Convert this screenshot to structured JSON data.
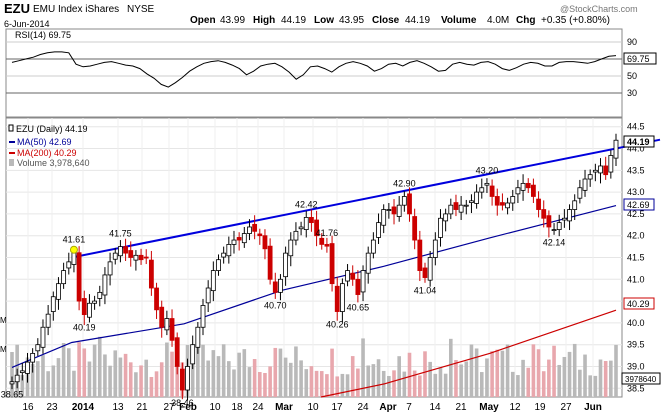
{
  "header": {
    "symbol": "EZU",
    "name": "EMU Index iShares",
    "exchange": "NYSE",
    "date": "6-Jun-2014",
    "watermark": "@StockCharts.com",
    "quote": {
      "open_label": "Open",
      "open": "43.99",
      "high_label": "High",
      "high": "44.19",
      "low_label": "Low",
      "low": "43.95",
      "close_label": "Close",
      "close": "44.19",
      "volume_label": "Volume",
      "volume": "4.0M",
      "chg_label": "Chg",
      "chg": "+0.35 (+0.80%)"
    }
  },
  "rsi_panel": {
    "legend": "RSI(14) 69.75",
    "last_value_tag": "69.75",
    "ticks": [
      "90",
      "70",
      "50",
      "30"
    ]
  },
  "price_panel": {
    "legend": {
      "price": "EZU (Daily) 44.19",
      "ma50": "MA(50) 42.69",
      "ma200": "MA(200) 40.29",
      "volume": "Volume 3,978,640"
    },
    "price_tags": {
      "close": "44.19",
      "ma50": "42.69",
      "ma200": "40.29",
      "volume": "3978640"
    },
    "y_ticks": [
      "44.5",
      "44.0",
      "43.5",
      "43.0",
      "42.5",
      "42.0",
      "41.5",
      "41.0",
      "40.5",
      "40.0",
      "39.5",
      "39.0",
      "38.5"
    ],
    "annotations": [
      "38.65",
      "41.61",
      "40.19",
      "41.75",
      "38.46",
      "42.42",
      "40.70",
      "41.76",
      "40.26",
      "40.65",
      "42.90",
      "41.04",
      "43.20",
      "42.14"
    ],
    "left_marks": [
      "M",
      "M"
    ]
  },
  "x_axis": {
    "labels": [
      "16",
      "23",
      "2014",
      "13",
      "21",
      "27",
      "Feb",
      "10",
      "18",
      "24",
      "Mar",
      "10",
      "17",
      "24",
      "Apr",
      "7",
      "14",
      "21",
      "May",
      "12",
      "19",
      "27",
      "Jun"
    ]
  },
  "colors": {
    "up": "#ffffff",
    "down": "#cc0000",
    "wick": "#000000",
    "trendline": "#0000dd",
    "ma50": "#000099",
    "ma200": "#cc0000",
    "vol_down": "#e8a7ad",
    "vol_up": "#b9b9b9",
    "highlight_dot": "#ffff00"
  },
  "chart_data": [
    {
      "type": "candlestick",
      "title": "EZU EMU Index iShares NYSE",
      "x_start": "2013-12-16",
      "x_end": "2014-06-06",
      "ylim": [
        38.3,
        44.7
      ],
      "close_series": [
        38.65,
        38.8,
        38.9,
        39.1,
        39.3,
        39.5,
        39.9,
        40.2,
        40.6,
        40.9,
        41.2,
        41.4,
        41.61,
        40.5,
        40.19,
        40.45,
        40.5,
        40.7,
        41.1,
        41.4,
        41.6,
        41.75,
        41.6,
        41.5,
        41.55,
        41.45,
        41.5,
        40.8,
        40.3,
        39.9,
        40.1,
        39.6,
        39.0,
        38.46,
        39.0,
        39.5,
        39.9,
        40.4,
        40.8,
        41.2,
        41.45,
        41.6,
        41.8,
        41.9,
        41.9,
        42.05,
        42.2,
        42.1,
        42.0,
        41.7,
        41.0,
        40.7,
        41.0,
        41.6,
        41.9,
        42.1,
        42.2,
        42.42,
        42.3,
        42.0,
        41.8,
        41.76,
        40.9,
        40.26,
        40.9,
        41.2,
        41.0,
        40.65,
        41.2,
        41.6,
        41.9,
        42.3,
        42.6,
        42.6,
        42.5,
        42.7,
        42.9,
        42.5,
        41.9,
        41.2,
        41.04,
        41.5,
        41.9,
        42.4,
        42.5,
        42.7,
        42.6,
        42.7,
        42.7,
        42.8,
        43.0,
        43.1,
        43.2,
        42.9,
        42.7,
        42.7,
        42.75,
        42.9,
        43.1,
        43.2,
        43.1,
        42.9,
        42.6,
        42.4,
        42.2,
        42.14,
        42.3,
        42.4,
        42.6,
        42.8,
        43.1,
        43.3,
        43.4,
        43.5,
        43.6,
        43.4,
        43.84,
        44.19
      ]
    },
    {
      "type": "line",
      "name": "MA(50)",
      "x": [
        "2013-12-16",
        "2014-01-02",
        "2014-02-03",
        "2014-03-03",
        "2014-04-01",
        "2014-05-01",
        "2014-06-06"
      ],
      "y": [
        38.98,
        39.55,
        39.98,
        40.75,
        41.3,
        41.95,
        42.69
      ]
    },
    {
      "type": "line",
      "name": "MA(200)",
      "x": [
        "2014-03-14",
        "2014-04-01",
        "2014-05-01",
        "2014-06-06"
      ],
      "y": [
        38.3,
        38.6,
        39.3,
        40.29
      ]
    },
    {
      "type": "line",
      "name": "Trendline",
      "x": [
        "2014-01-02",
        "2014-06-06"
      ],
      "y": [
        41.5,
        44.0
      ]
    },
    {
      "type": "line",
      "name": "RSI(14)",
      "ylim": [
        0,
        100
      ],
      "values": [
        62,
        64,
        66,
        68,
        71,
        73,
        74,
        74,
        73,
        60,
        57,
        58,
        60,
        62,
        63,
        61,
        59,
        58,
        55,
        49,
        44,
        37,
        34,
        39,
        45,
        52,
        57,
        61,
        63,
        64,
        62,
        59,
        55,
        48,
        52,
        58,
        60,
        61,
        57,
        51,
        43,
        48,
        57,
        58,
        55,
        51,
        57,
        61,
        63,
        61,
        58,
        52,
        55,
        60,
        61,
        58,
        62,
        64,
        61,
        57,
        52,
        53,
        60,
        62,
        60,
        59,
        62,
        63,
        60,
        55,
        53,
        56,
        60,
        62,
        61,
        58,
        58,
        62,
        63,
        63,
        62,
        61,
        63,
        66,
        69,
        69.75
      ]
    }
  ]
}
